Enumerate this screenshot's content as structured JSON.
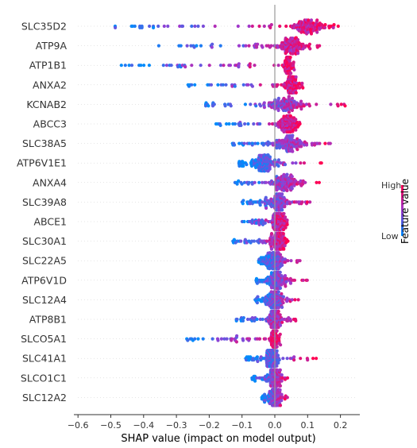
{
  "chart_data": {
    "type": "scatter",
    "subtype": "shap-beeswarm",
    "xlabel": "SHAP value (impact on model output)",
    "xlim": [
      -0.62,
      0.26
    ],
    "xticks": [
      -0.6,
      -0.5,
      -0.4,
      -0.3,
      -0.2,
      -0.1,
      0.0,
      0.1,
      0.2
    ],
    "xtick_labels": [
      "−0.6",
      "−0.5",
      "−0.4",
      "−0.3",
      "−0.2",
      "−0.1",
      "0.0",
      "0.1",
      "0.2"
    ],
    "colorbar": {
      "title": "Feature value",
      "high_label": "High",
      "low_label": "Low",
      "low_color": "#008bfb",
      "high_color": "#ff0052"
    },
    "features": [
      {
        "name": "SLC35D2",
        "min": -0.56,
        "max": 0.2,
        "center": 0.1,
        "spread": 0.05
      },
      {
        "name": "ATP9A",
        "min": -0.36,
        "max": 0.14,
        "center": 0.05,
        "spread": 0.04
      },
      {
        "name": "ATP1B1",
        "min": -0.48,
        "max": 0.06,
        "center": 0.04,
        "spread": 0.01
      },
      {
        "name": "ANXA2",
        "min": -0.27,
        "max": 0.09,
        "center": 0.05,
        "spread": 0.02
      },
      {
        "name": "KCNAB2",
        "min": -0.22,
        "max": 0.22,
        "center": 0.03,
        "spread": 0.06
      },
      {
        "name": "ABCC3",
        "min": -0.18,
        "max": 0.08,
        "center": 0.04,
        "spread": 0.03
      },
      {
        "name": "SLC38A5",
        "min": -0.14,
        "max": 0.18,
        "center": 0.04,
        "spread": 0.05
      },
      {
        "name": "ATP6V1E1",
        "min": -0.11,
        "max": 0.15,
        "center": -0.03,
        "spread": 0.05
      },
      {
        "name": "ANXA4",
        "min": -0.13,
        "max": 0.14,
        "center": 0.03,
        "spread": 0.04
      },
      {
        "name": "SLC39A8",
        "min": -0.1,
        "max": 0.12,
        "center": 0.01,
        "spread": 0.03
      },
      {
        "name": "ABCE1",
        "min": -0.1,
        "max": 0.04,
        "center": 0.01,
        "spread": 0.02
      },
      {
        "name": "SLC30A1",
        "min": -0.13,
        "max": 0.04,
        "center": 0.01,
        "spread": 0.02
      },
      {
        "name": "SLC22A5",
        "min": -0.05,
        "max": 0.08,
        "center": 0.0,
        "spread": 0.03
      },
      {
        "name": "ATP6V1D",
        "min": -0.06,
        "max": 0.1,
        "center": 0.01,
        "spread": 0.03
      },
      {
        "name": "SLC12A4",
        "min": -0.06,
        "max": 0.08,
        "center": 0.0,
        "spread": 0.03
      },
      {
        "name": "ATP8B1",
        "min": -0.12,
        "max": 0.08,
        "center": 0.0,
        "spread": 0.02
      },
      {
        "name": "SLCO5A1",
        "min": -0.27,
        "max": 0.02,
        "center": 0.0,
        "spread": 0.01
      },
      {
        "name": "SLC41A1",
        "min": -0.09,
        "max": 0.14,
        "center": -0.01,
        "spread": 0.02
      },
      {
        "name": "SLCO1C1",
        "min": -0.07,
        "max": 0.05,
        "center": 0.0,
        "spread": 0.02
      },
      {
        "name": "SLC12A2",
        "min": -0.04,
        "max": 0.04,
        "center": 0.0,
        "spread": 0.02
      }
    ]
  }
}
